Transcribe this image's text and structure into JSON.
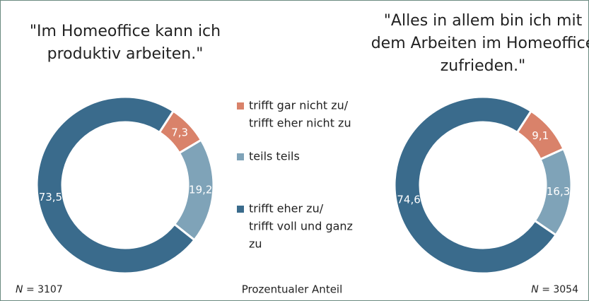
{
  "chart_data": [
    {
      "type": "donut",
      "title": [
        "\"Im Homeoffice kann ich",
        "produktiv arbeiten.\""
      ],
      "values": [
        7.3,
        19.2,
        73.5
      ],
      "value_labels": [
        "7,3",
        "19,2",
        "73,5"
      ],
      "n_symbol": "N",
      "n_text": "= 3107"
    },
    {
      "type": "donut",
      "title": [
        "\"Alles in allem bin ich mit",
        "dem Arbeiten im Homeoffice",
        "zufrieden.\""
      ],
      "values": [
        9.1,
        16.3,
        74.6
      ],
      "value_labels": [
        "9,1",
        "16,3",
        "74,6"
      ],
      "n_symbol": "N",
      "n_text": "= 3054"
    }
  ],
  "legend": {
    "labels": [
      [
        "trifft gar nicht zu/",
        "trifft eher nicht zu"
      ],
      [
        "teils teils"
      ],
      [
        "trifft eher zu/",
        "trifft voll und ganz",
        "zu"
      ]
    ],
    "colors": [
      "#d9826a",
      "#7fa3b8",
      "#3a6b8c"
    ]
  },
  "footer": "Prozentualer Anteil"
}
